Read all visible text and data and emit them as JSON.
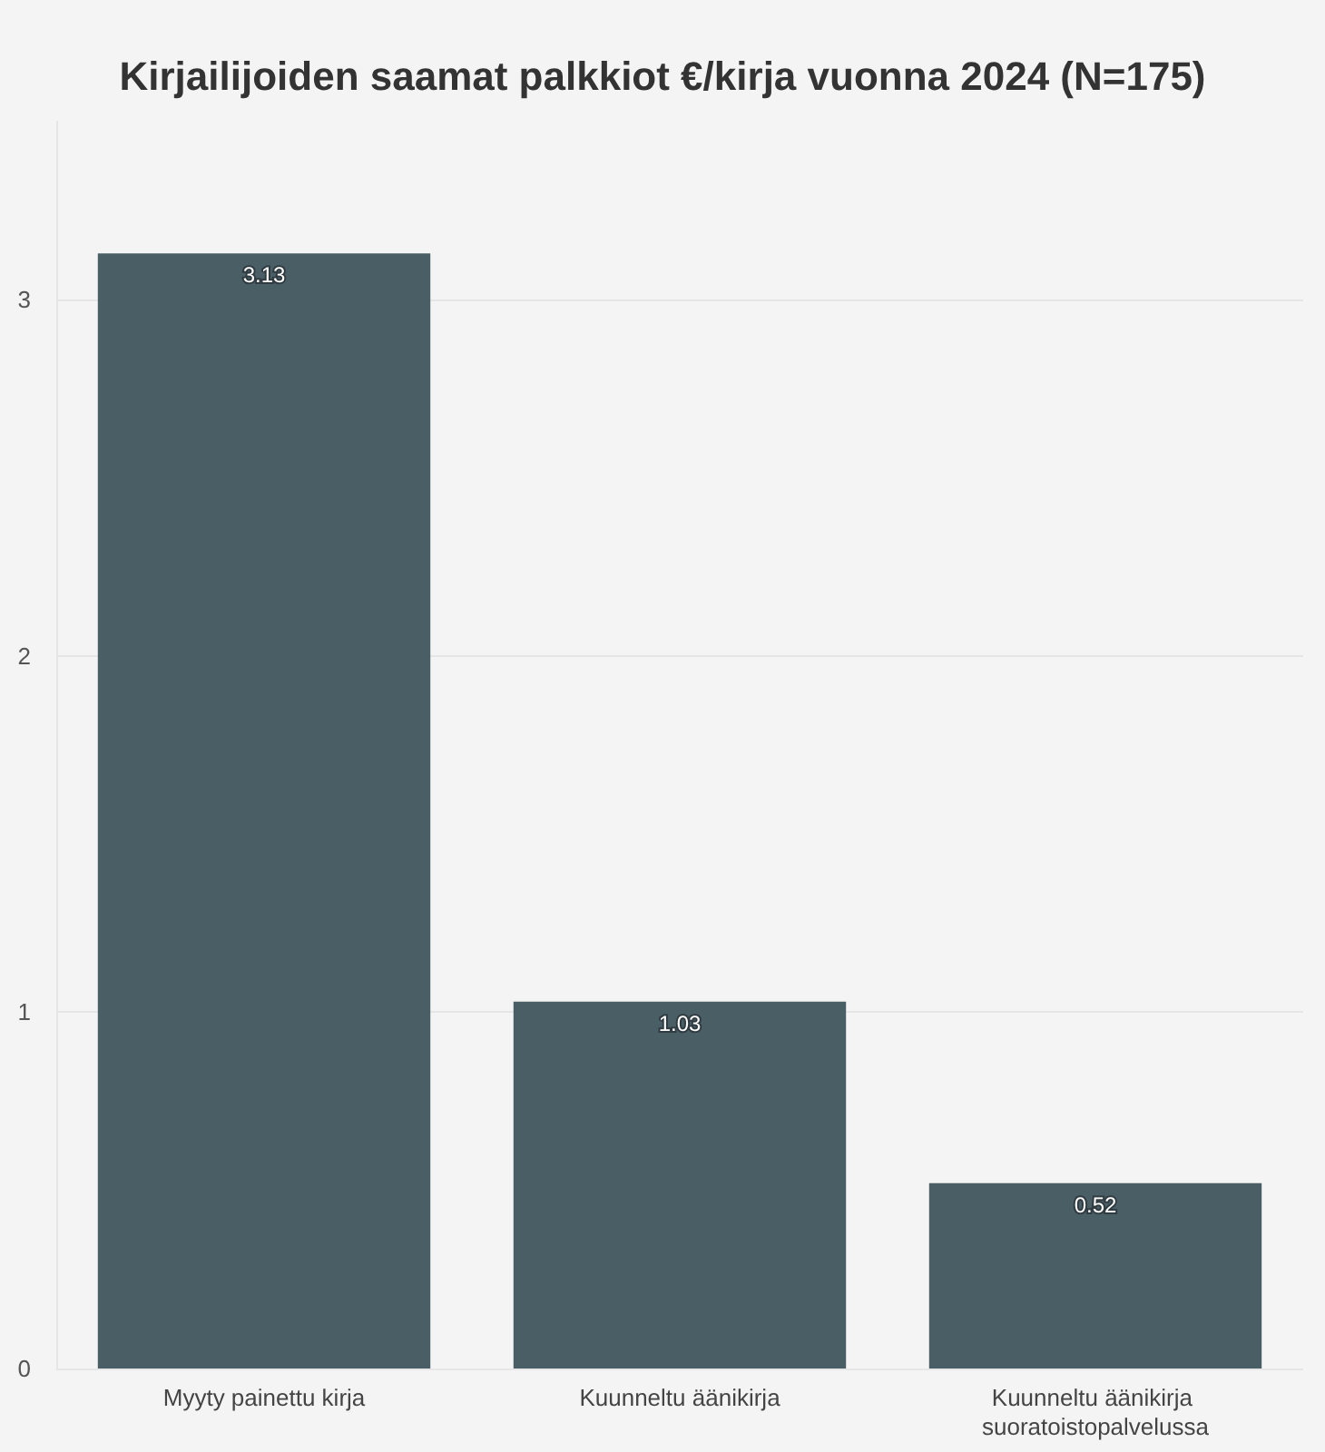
{
  "chart_data": {
    "type": "bar",
    "title": "Kirjailijoiden saamat palkkiot €/kirja vuonna 2024 (N=175)",
    "categories": [
      "Myyty painettu kirja",
      "Kuunneltu äänikirja",
      "Kuunneltu äänikirja suoratoistopalvelussa"
    ],
    "values": [
      3.13,
      1.03,
      0.52
    ],
    "color": "#4a5e66",
    "ylim": [
      0,
      3.5
    ],
    "yticks": [
      0,
      1,
      2,
      3
    ],
    "grid": "y",
    "data_labels": true
  }
}
